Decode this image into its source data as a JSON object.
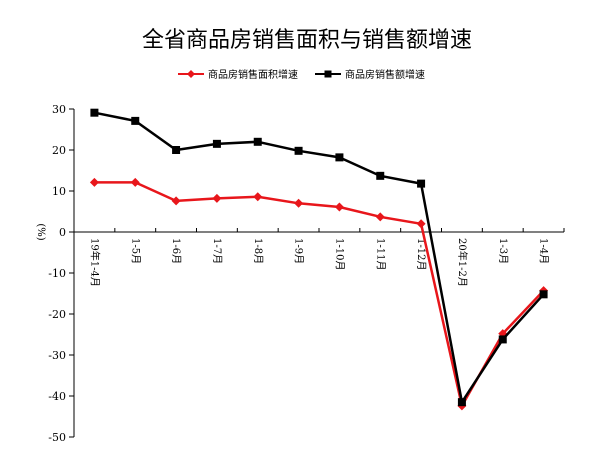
{
  "chart_data": {
    "type": "line",
    "title": "全省商品房销售面积与销售额增速",
    "xlabel": "",
    "ylabel": "(%)",
    "ylim": [
      -50,
      30
    ],
    "yticks": [
      30,
      20,
      10,
      0,
      -10,
      -20,
      -30,
      -40,
      -50
    ],
    "categories": [
      "19年1-4月",
      "1-5月",
      "1-6月",
      "1-7月",
      "1-8月",
      "1-9月",
      "1-10月",
      "1-11月",
      "1-12月",
      "20年1-2月",
      "1-3月",
      "1-4月"
    ],
    "legend_position": "top",
    "grid": false,
    "series": [
      {
        "name": "商品房销售面积增速",
        "color": "#e8161b",
        "marker": "diamond",
        "values": [
          12.1,
          12.1,
          7.6,
          8.2,
          8.6,
          7.0,
          6.1,
          3.7,
          2.0,
          -42.4,
          -24.8,
          -14.3
        ]
      },
      {
        "name": "商品房销售额增速",
        "color": "#000000",
        "marker": "square",
        "values": [
          29.1,
          27.1,
          20.0,
          21.5,
          22.0,
          19.8,
          18.2,
          13.7,
          11.8,
          -41.5,
          -26.2,
          -15.2
        ]
      }
    ]
  }
}
